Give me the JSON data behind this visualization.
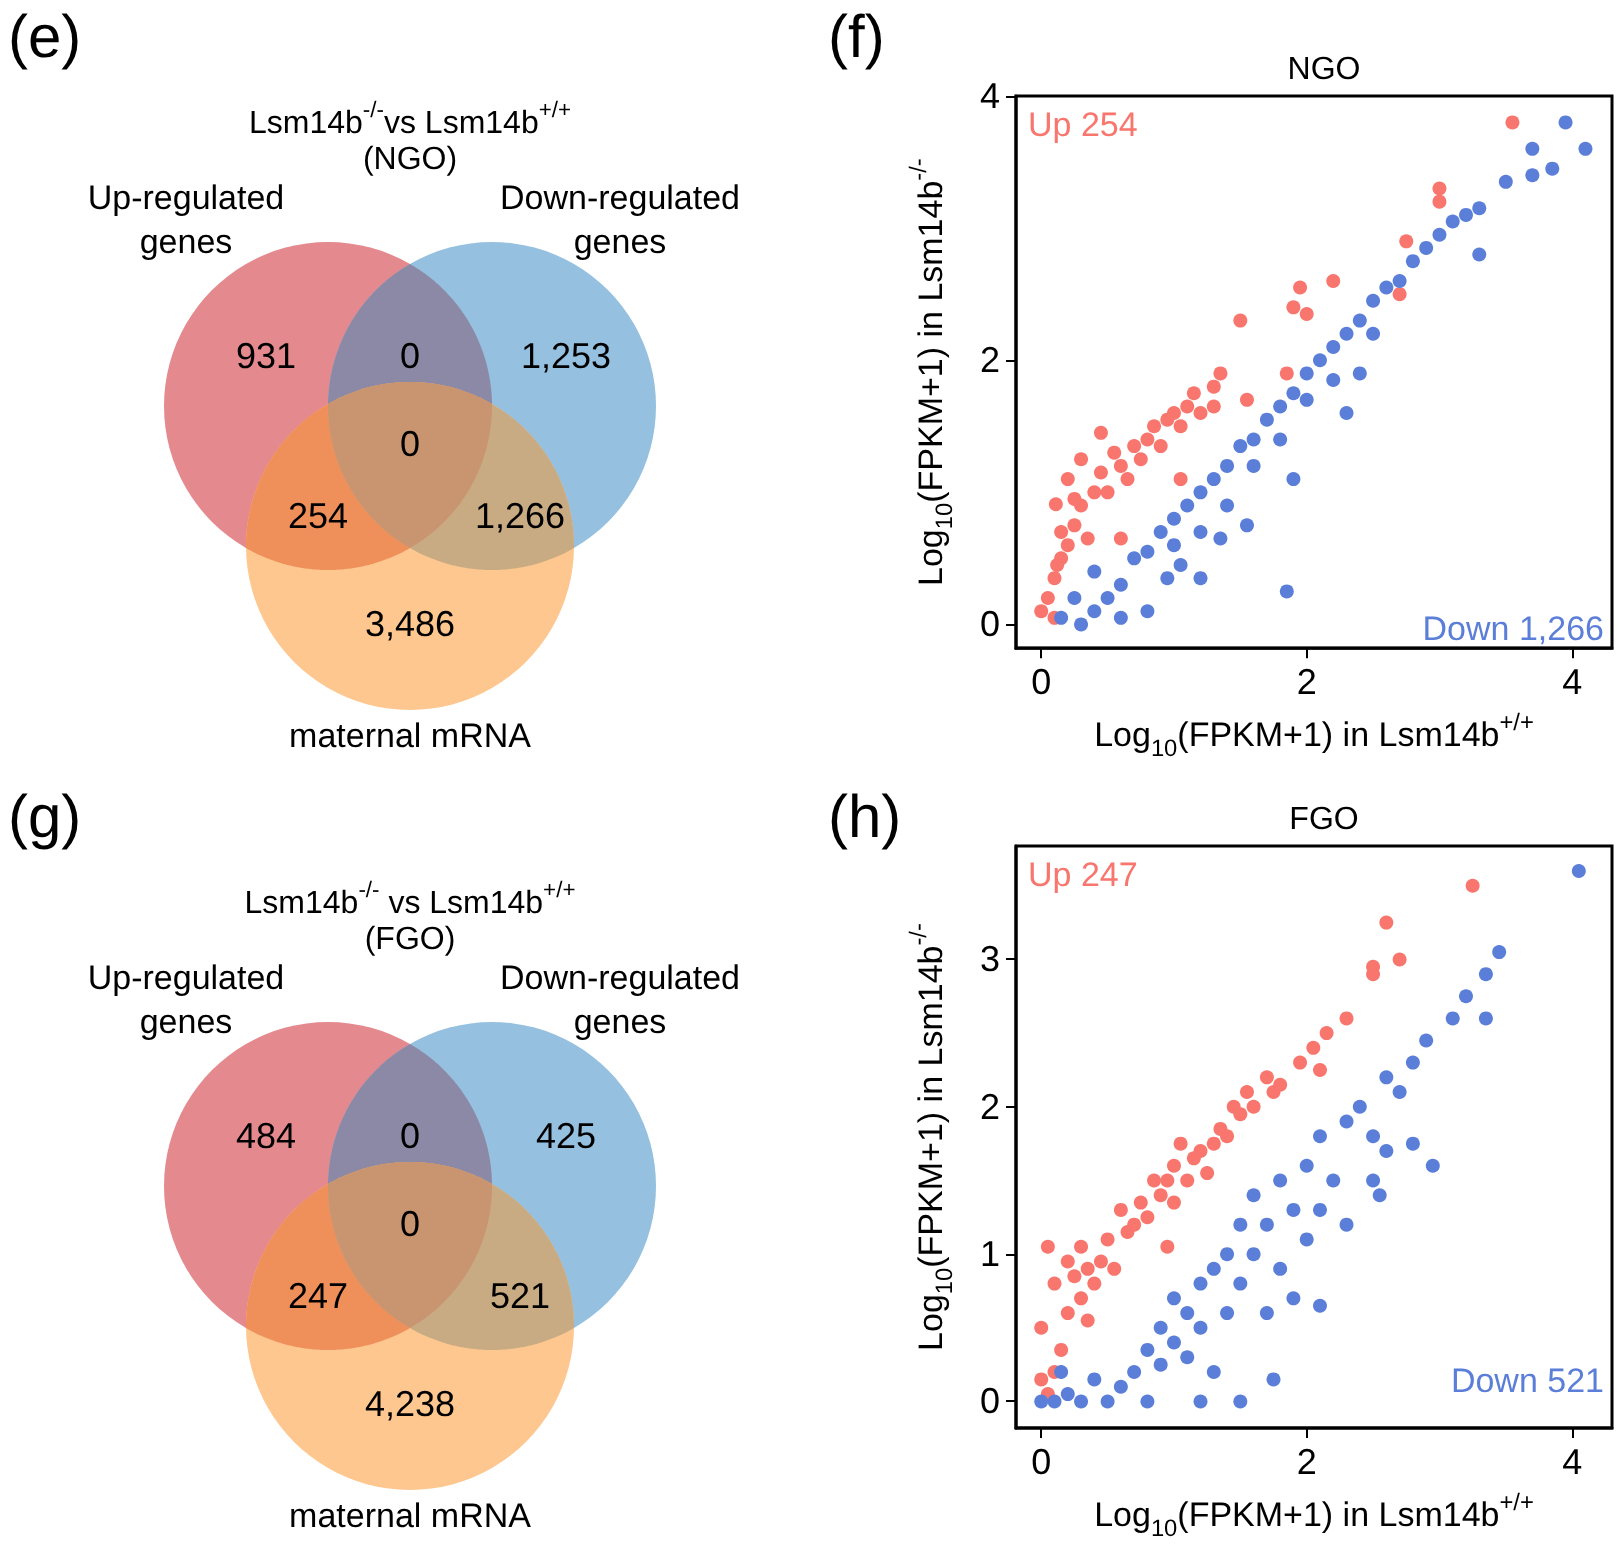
{
  "chart_data": [
    {
      "type": "other",
      "title": "Lsm14b$^{-/-}$vs Lsm14b$^{+/+}$",
      "subtitle": "(NGO)",
      "annotations": [
        "(e)",
        "Up-regulated\ngenes",
        "Down-regulated\ngenes",
        "maternal mRNA",
        "931",
        "0",
        "1,253",
        "254",
        "0",
        "1,266",
        "3,486"
      ],
      "colors": [
        "#e48a8e",
        "#8c89a6",
        "#95c0df",
        "#ef8f5a",
        "#c99570",
        "#c8ab82",
        "#fdc78f"
      ]
    },
    {
      "type": "scatter",
      "title": "NGO",
      "annotations": [
        "(f)"
      ],
      "xlabel": "Log$_{10}$(FPKM+1) in Lsm14b$^{+/+}$",
      "ylabel": "Log$_{10}$(FPKM+1) in Lsm14b$^{-/-}$",
      "xlim": [
        -0.19,
        4.3
      ],
      "ylim": [
        -0.18,
        4
      ],
      "xticks": [
        0,
        2,
        4
      ],
      "yticks": [
        0,
        2,
        4
      ],
      "marker": "circle",
      "series": [
        {
          "name": "Up 254",
          "color": "#f8766d",
          "x": [
            0,
            0.05,
            0.1,
            0.15,
            0.2,
            0.25,
            0.3,
            0.15,
            0.35,
            0.4,
            0.45,
            0.5,
            0.55,
            0.6,
            0.65,
            0.7,
            0.75,
            0.8,
            0.85,
            0.9,
            0.95,
            1.0,
            1.05,
            1.1,
            1.15,
            1.2,
            1.3,
            1.35,
            1.3,
            1.55,
            1.85,
            1.5,
            1.9,
            1.95,
            2.0,
            2.2,
            2.7,
            2.75,
            3.0,
            3.0,
            3.55,
            0.6,
            1.05,
            0.1,
            0.3,
            0.45,
            0.25,
            0.2,
            0.12,
            0.11
          ],
          "values": [
            0.1,
            0.2,
            0.35,
            0.5,
            0.6,
            0.75,
            0.9,
            0.7,
            0.65,
            1.0,
            1.15,
            1.0,
            1.3,
            1.2,
            1.1,
            1.35,
            1.25,
            1.4,
            1.5,
            1.35,
            1.55,
            1.6,
            1.5,
            1.65,
            1.75,
            1.6,
            1.8,
            1.9,
            1.65,
            1.7,
            1.9,
            2.3,
            2.4,
            2.55,
            2.35,
            2.6,
            2.5,
            2.9,
            3.3,
            3.2,
            3.8,
            0.65,
            1.1,
            0.05,
            1.25,
            1.45,
            0.95,
            1.1,
            0.45,
            0.91
          ]
        },
        {
          "name": "Down 1,266",
          "color": "#5b7fd9",
          "x": [
            0.15,
            0.3,
            0.4,
            0.5,
            0.4,
            0.6,
            0.7,
            0.8,
            0.9,
            1.0,
            1.0,
            1.1,
            1.2,
            1.2,
            1.3,
            1.4,
            1.4,
            1.5,
            1.6,
            1.6,
            1.7,
            1.8,
            1.8,
            1.9,
            2.0,
            2.0,
            2.1,
            2.2,
            2.2,
            2.3,
            2.4,
            2.5,
            2.5,
            2.6,
            2.7,
            2.8,
            2.9,
            3.0,
            3.1,
            3.2,
            3.3,
            3.3,
            3.5,
            3.7,
            3.7,
            3.95,
            4.1,
            3.85,
            1.85,
            0.8,
            1.2,
            1.55,
            1.9,
            2.4,
            1.35,
            0.6,
            0.95,
            0.25,
            1.05,
            2.3
          ],
          "values": [
            0.05,
            0.0,
            0.1,
            0.2,
            0.4,
            0.3,
            0.5,
            0.55,
            0.7,
            0.8,
            0.6,
            0.9,
            1.0,
            0.7,
            1.1,
            1.2,
            0.9,
            1.35,
            1.4,
            1.2,
            1.55,
            1.65,
            1.4,
            1.75,
            1.9,
            1.7,
            2.0,
            2.1,
            1.85,
            2.2,
            2.3,
            2.45,
            2.2,
            2.55,
            2.6,
            2.75,
            2.85,
            2.95,
            3.05,
            3.1,
            3.15,
            2.8,
            3.35,
            3.4,
            3.6,
            3.8,
            3.6,
            3.45,
            0.25,
            0.1,
            0.35,
            0.75,
            1.1,
            1.9,
            0.65,
            0.05,
            0.35,
            0.2,
            0.45,
            1.6
          ]
        }
      ]
    },
    {
      "type": "other",
      "title": "Lsm14b$^{-/-}$ vs Lsm14b$^{+/+}$",
      "subtitle": "(FGO)",
      "annotations": [
        "(g)",
        "Up-regulated\ngenes",
        "Down-regulated\ngenes",
        "maternal mRNA",
        "484",
        "0",
        "425",
        "247",
        "0",
        "521",
        "4,238"
      ],
      "colors": [
        "#e48a8e",
        "#8c89a6",
        "#95c0df",
        "#ef8f5a",
        "#c99570",
        "#c8ab82",
        "#fdc78f"
      ]
    },
    {
      "type": "scatter",
      "title": "FGO",
      "annotations": [
        "(h)"
      ],
      "xlabel": "Log$_{10}$(FPKM+1) in Lsm14b$^{+/+}$",
      "ylabel": "Log$_{10}$(FPKM+1) in Lsm14b$^{-/-}$",
      "xlim": [
        -0.19,
        4.3
      ],
      "ylim": [
        -0.18,
        3.77
      ],
      "xticks": [
        0,
        2,
        4
      ],
      "yticks": [
        0,
        1,
        2,
        3
      ],
      "marker": "circle",
      "series": [
        {
          "name": "Up 247",
          "color": "#f8766d",
          "x": [
            0,
            0,
            0.05,
            0.1,
            0.15,
            0.1,
            0.2,
            0.2,
            0.25,
            0.3,
            0.3,
            0.35,
            0.4,
            0.45,
            0.5,
            0.55,
            0.6,
            0.65,
            0.7,
            0.75,
            0.8,
            0.85,
            0.9,
            0.95,
            1.0,
            1.0,
            1.05,
            1.1,
            1.15,
            1.2,
            1.25,
            1.3,
            1.35,
            1.4,
            1.45,
            1.5,
            1.55,
            1.6,
            1.7,
            1.75,
            1.8,
            1.95,
            2.05,
            2.1,
            2.15,
            2.3,
            2.5,
            2.5,
            2.6,
            2.7,
            3.25,
            0.05,
            0.95,
            0.35
          ],
          "values": [
            0.15,
            0.5,
            1.05,
            0.8,
            0.35,
            0.2,
            0.6,
            0.95,
            0.85,
            0.7,
            1.05,
            0.9,
            0.8,
            0.95,
            1.1,
            0.9,
            1.3,
            1.15,
            1.2,
            1.35,
            1.25,
            1.5,
            1.4,
            1.5,
            1.35,
            1.6,
            1.75,
            1.5,
            1.65,
            1.7,
            1.55,
            1.75,
            1.85,
            1.8,
            2.0,
            1.95,
            2.1,
            2.0,
            2.2,
            2.1,
            2.15,
            2.3,
            2.4,
            2.25,
            2.5,
            2.6,
            2.95,
            2.9,
            3.25,
            3.0,
            3.5,
            0.05,
            1.05,
            0.55
          ]
        },
        {
          "name": "Down 521",
          "color": "#5b7fd9",
          "x": [
            0.0,
            0.1,
            0.2,
            0.3,
            0.4,
            0.5,
            0.6,
            0.7,
            0.8,
            0.8,
            0.9,
            0.9,
            1.0,
            1.0,
            1.1,
            1.1,
            1.2,
            1.2,
            1.3,
            1.3,
            1.4,
            1.4,
            1.5,
            1.5,
            1.6,
            1.6,
            1.7,
            1.7,
            1.8,
            1.8,
            1.9,
            1.9,
            2.0,
            2.0,
            2.1,
            2.1,
            2.2,
            2.3,
            2.3,
            2.4,
            2.5,
            2.5,
            2.6,
            2.6,
            2.7,
            2.8,
            2.8,
            2.9,
            2.95,
            3.1,
            3.2,
            3.35,
            3.35,
            3.45,
            4.05,
            1.5,
            1.75,
            2.1,
            1.2,
            0.15,
            2.55
          ],
          "values": [
            0.0,
            0.0,
            0.05,
            0.0,
            0.15,
            0.0,
            0.1,
            0.2,
            0.0,
            0.35,
            0.25,
            0.5,
            0.4,
            0.7,
            0.6,
            0.3,
            0.8,
            0.5,
            0.9,
            0.2,
            1.0,
            0.6,
            1.2,
            0.8,
            1.4,
            1.0,
            1.2,
            0.6,
            1.5,
            0.9,
            1.3,
            0.7,
            1.6,
            1.1,
            1.8,
            1.3,
            1.5,
            1.9,
            1.2,
            2.0,
            1.8,
            1.5,
            2.2,
            1.7,
            2.1,
            2.3,
            1.75,
            2.45,
            1.6,
            2.6,
            2.75,
            2.6,
            2.9,
            3.05,
            3.6,
            0.0,
            0.15,
            0.65,
            0.0,
            0.2,
            1.4
          ]
        }
      ]
    }
  ]
}
